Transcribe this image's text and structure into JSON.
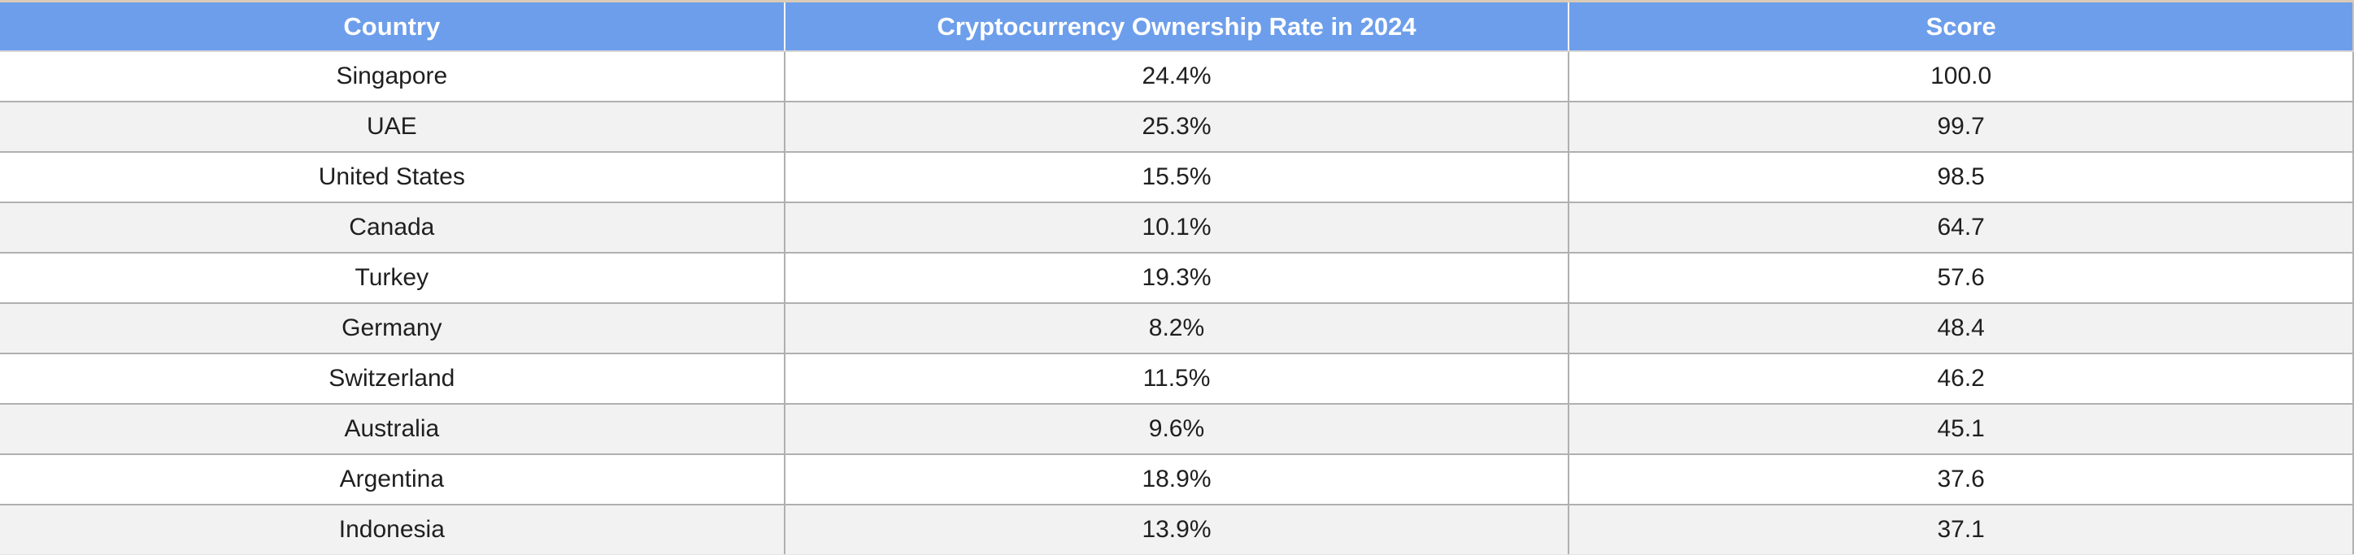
{
  "table": {
    "columns": [
      {
        "label": "Country"
      },
      {
        "label": "Cryptocurrency Ownership Rate in 2024"
      },
      {
        "label": "Score"
      }
    ],
    "rows": [
      {
        "country": "Singapore",
        "ownership_rate": "24.4%",
        "score": "100.0"
      },
      {
        "country": "UAE",
        "ownership_rate": "25.3%",
        "score": "99.7"
      },
      {
        "country": "United States",
        "ownership_rate": "15.5%",
        "score": "98.5"
      },
      {
        "country": "Canada",
        "ownership_rate": "10.1%",
        "score": "64.7"
      },
      {
        "country": "Turkey",
        "ownership_rate": "19.3%",
        "score": "57.6"
      },
      {
        "country": "Germany",
        "ownership_rate": "8.2%",
        "score": "48.4"
      },
      {
        "country": "Switzerland",
        "ownership_rate": "11.5%",
        "score": "46.2"
      },
      {
        "country": "Australia",
        "ownership_rate": "9.6%",
        "score": "45.1"
      },
      {
        "country": "Argentina",
        "ownership_rate": "18.9%",
        "score": "37.6"
      },
      {
        "country": "Indonesia",
        "ownership_rate": "13.9%",
        "score": "37.1"
      }
    ]
  },
  "colors": {
    "header_bg": "#6d9eeb",
    "header_text": "#ffffff",
    "row_bg": "#ffffff",
    "row_alt_bg": "#f2f2f2",
    "border": "#b0b0b0",
    "top_border": "#d9cbb6",
    "text": "#1f1f1f"
  },
  "chart_data": {
    "type": "table",
    "title": "",
    "columns": [
      "Country",
      "Cryptocurrency Ownership Rate in 2024",
      "Score"
    ],
    "rows": [
      [
        "Singapore",
        "24.4%",
        100.0
      ],
      [
        "UAE",
        "25.3%",
        99.7
      ],
      [
        "United States",
        "15.5%",
        98.5
      ],
      [
        "Canada",
        "10.1%",
        64.7
      ],
      [
        "Turkey",
        "19.3%",
        57.6
      ],
      [
        "Germany",
        "8.2%",
        48.4
      ],
      [
        "Switzerland",
        "11.5%",
        46.2
      ],
      [
        "Australia",
        "9.6%",
        45.1
      ],
      [
        "Argentina",
        "18.9%",
        37.6
      ],
      [
        "Indonesia",
        "13.9%",
        37.1
      ]
    ],
    "layout": {
      "header_style": "blue background, white bold centered text",
      "row_striping": "alternating white / light gray",
      "column_widths": "three equal thirds",
      "alignment": "all cells center-aligned"
    }
  }
}
